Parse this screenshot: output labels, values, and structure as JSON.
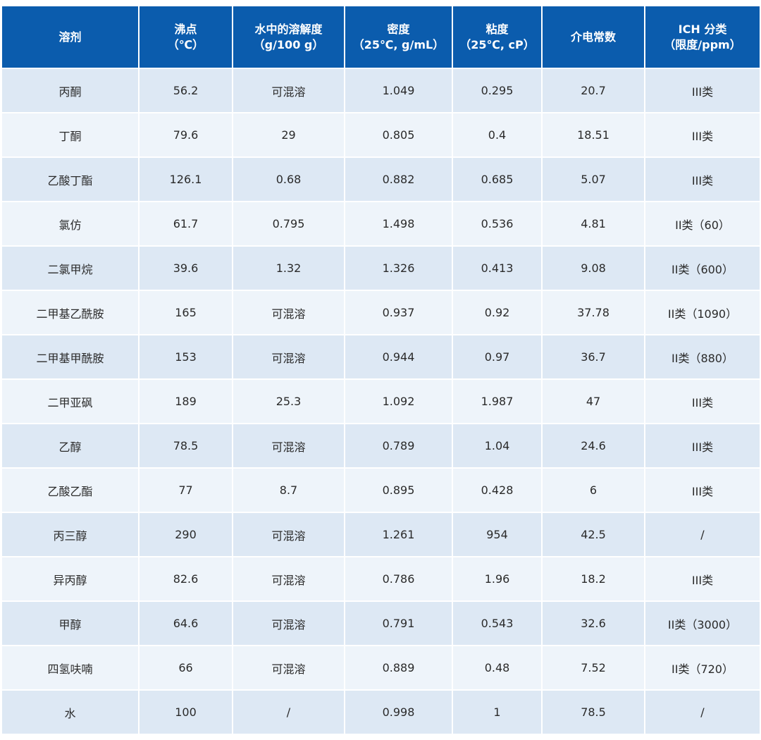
{
  "table": {
    "headers": [
      [
        "溶剂"
      ],
      [
        "沸点",
        "（℃）"
      ],
      [
        "水中的溶解度",
        "（g/100 g）"
      ],
      [
        "密度",
        "（25℃, g/mL）"
      ],
      [
        "粘度",
        "（25℃, cP）"
      ],
      [
        "介电常数"
      ],
      [
        "ICH 分类",
        "（限度/ppm）"
      ]
    ],
    "rows": [
      [
        "丙酮",
        "56.2",
        "可混溶",
        "1.049",
        "0.295",
        "20.7",
        "III类"
      ],
      [
        "丁酮",
        "79.6",
        "29",
        "0.805",
        "0.4",
        "18.51",
        "III类"
      ],
      [
        "乙酸丁酯",
        "126.1",
        "0.68",
        "0.882",
        "0.685",
        "5.07",
        "III类"
      ],
      [
        "氯仿",
        "61.7",
        "0.795",
        "1.498",
        "0.536",
        "4.81",
        "II类（60）"
      ],
      [
        "二氯甲烷",
        "39.6",
        "1.32",
        "1.326",
        "0.413",
        "9.08",
        "II类（600）"
      ],
      [
        "二甲基乙酰胺",
        "165",
        "可混溶",
        "0.937",
        "0.92",
        "37.78",
        "II类（1090）"
      ],
      [
        "二甲基甲酰胺",
        "153",
        "可混溶",
        "0.944",
        "0.97",
        "36.7",
        "II类（880）"
      ],
      [
        "二甲亚砜",
        "189",
        "25.3",
        "1.092",
        "1.987",
        "47",
        "III类"
      ],
      [
        "乙醇",
        "78.5",
        "可混溶",
        "0.789",
        "1.04",
        "24.6",
        "III类"
      ],
      [
        "乙酸乙酯",
        "77",
        "8.7",
        "0.895",
        "0.428",
        "6",
        "III类"
      ],
      [
        "丙三醇",
        "290",
        "可混溶",
        "1.261",
        "954",
        "42.5",
        "/"
      ],
      [
        "异丙醇",
        "82.6",
        "可混溶",
        "0.786",
        "1.96",
        "18.2",
        "III类"
      ],
      [
        "甲醇",
        "64.6",
        "可混溶",
        "0.791",
        "0.543",
        "32.6",
        "II类（3000）"
      ],
      [
        "四氢呋喃",
        "66",
        "可混溶",
        "0.889",
        "0.48",
        "7.52",
        "II类（720）"
      ],
      [
        "水",
        "100",
        "/",
        "0.998",
        "1",
        "78.5",
        "/"
      ]
    ]
  }
}
